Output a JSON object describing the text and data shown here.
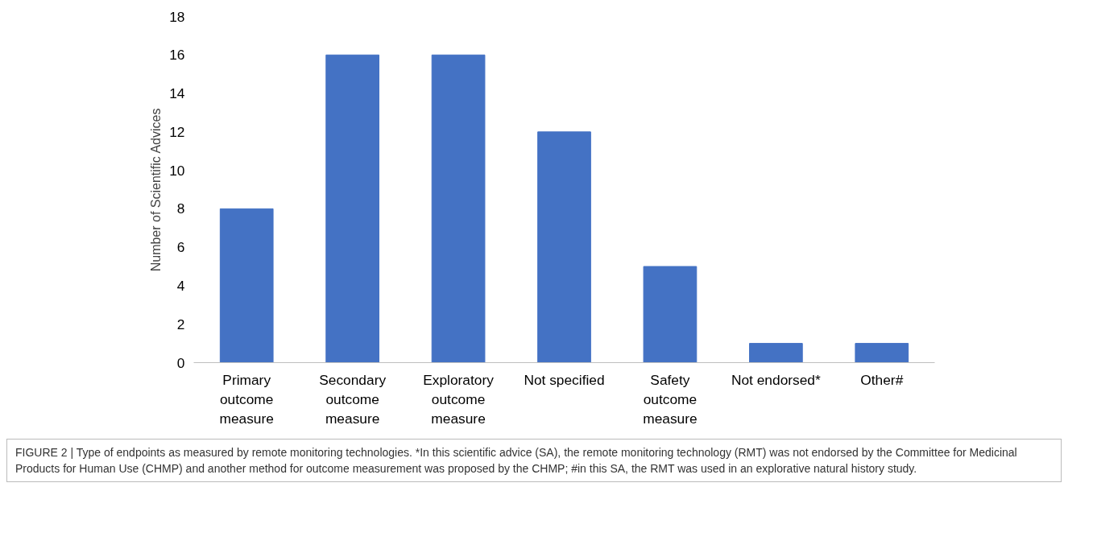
{
  "chart_data": {
    "type": "bar",
    "ylabel": "Number of Scientific Advices",
    "categories": [
      "Primary outcome measure",
      "Secondary outcome measure",
      "Exploratory outcome measure",
      "Not specified",
      "Safety outcome measure",
      "Not endorsed*",
      "Other#"
    ],
    "values": [
      8,
      16,
      16,
      12,
      5,
      1,
      1
    ],
    "color": "#4472c4",
    "ylim": [
      0,
      18
    ],
    "yticks": [
      0,
      2,
      4,
      6,
      8,
      10,
      12,
      14,
      16,
      18
    ],
    "grid": false,
    "annotations": [
      "FIGURE 2 | Type of endpoints as measured by remote monitoring technologies. *In this scientific advice (SA), the remote monitoring technology (RMT) was not endorsed by the Committee for Medicinal Products for Human Use (CHMP) and another method for outcome measurement was proposed by the CHMP; #in this SA, the RMT was used in an explorative natural history study."
    ]
  }
}
